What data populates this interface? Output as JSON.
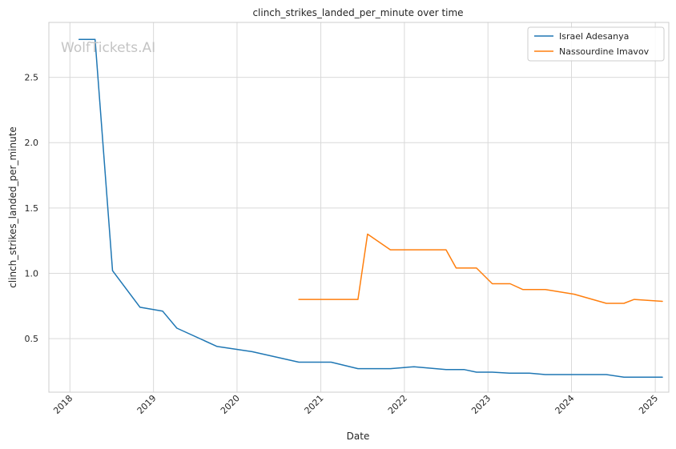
{
  "chart_data": {
    "type": "line",
    "title": "clinch_strikes_landed_per_minute over time",
    "xlabel": "Date",
    "ylabel": "clinch_strikes_landed_per_minute",
    "watermark": "WolfTickets.AI",
    "xlim": [
      "2017-10-01",
      "2025-03-01"
    ],
    "ylim": [
      0.09,
      2.92
    ],
    "x_ticks": [
      "2018",
      "2019",
      "2020",
      "2021",
      "2022",
      "2023",
      "2024",
      "2025"
    ],
    "y_ticks": [
      "0.5",
      "1.0",
      "1.5",
      "2.0",
      "2.5"
    ],
    "grid": true,
    "legend_position": "top-right",
    "series": [
      {
        "name": "Israel Adesanya",
        "color": "#1f77b4",
        "points": [
          [
            "2018-02-10",
            2.79
          ],
          [
            "2018-04-21",
            2.79
          ],
          [
            "2018-07-06",
            1.02
          ],
          [
            "2018-11-03",
            0.74
          ],
          [
            "2019-02-10",
            0.71
          ],
          [
            "2019-04-13",
            0.58
          ],
          [
            "2019-10-06",
            0.44
          ],
          [
            "2020-03-07",
            0.4
          ],
          [
            "2020-09-27",
            0.32
          ],
          [
            "2021-02-15",
            0.32
          ],
          [
            "2021-06-12",
            0.27
          ],
          [
            "2021-11-01",
            0.27
          ],
          [
            "2022-02-12",
            0.285
          ],
          [
            "2022-07-02",
            0.263
          ],
          [
            "2022-09-20",
            0.263
          ],
          [
            "2022-11-12",
            0.243
          ],
          [
            "2023-01-20",
            0.243
          ],
          [
            "2023-04-08",
            0.235
          ],
          [
            "2023-07-01",
            0.235
          ],
          [
            "2023-09-09",
            0.225
          ],
          [
            "2024-06-01",
            0.225
          ],
          [
            "2024-08-17",
            0.205
          ],
          [
            "2025-02-01",
            0.205
          ]
        ]
      },
      {
        "name": "Nassourdine Imavov",
        "color": "#ff7f0e",
        "points": [
          [
            "2020-09-27",
            0.8
          ],
          [
            "2021-06-12",
            0.8
          ],
          [
            "2021-07-24",
            1.3
          ],
          [
            "2021-11-01",
            1.18
          ],
          [
            "2022-07-02",
            1.18
          ],
          [
            "2022-08-15",
            1.04
          ],
          [
            "2022-11-12",
            1.04
          ],
          [
            "2023-01-20",
            0.92
          ],
          [
            "2023-04-08",
            0.92
          ],
          [
            "2023-06-03",
            0.875
          ],
          [
            "2023-09-09",
            0.875
          ],
          [
            "2024-01-13",
            0.84
          ],
          [
            "2024-06-01",
            0.77
          ],
          [
            "2024-08-17",
            0.77
          ],
          [
            "2024-10-01",
            0.8
          ],
          [
            "2025-02-01",
            0.785
          ]
        ]
      }
    ]
  }
}
